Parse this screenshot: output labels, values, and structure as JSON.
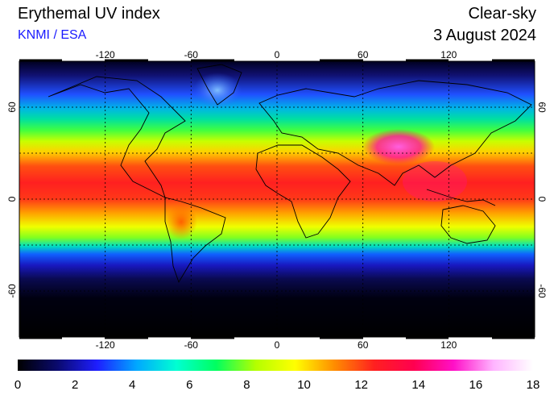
{
  "header": {
    "title": "Erythemal UV index",
    "subtitle": "KNMI / ESA",
    "sky_condition": "Clear-sky",
    "date": "3 August 2024"
  },
  "map": {
    "lon_ticks": [
      -120,
      -60,
      0,
      60,
      120
    ],
    "lat_ticks": [
      60,
      0,
      -60
    ],
    "lon_range": [
      -180,
      180
    ],
    "lat_range": [
      -90,
      90
    ],
    "grid": "dashed"
  },
  "colorbar": {
    "labels": [
      "0",
      "2",
      "4",
      "6",
      "8",
      "10",
      "12",
      "14",
      "16",
      "18"
    ],
    "min": 0,
    "max": 18,
    "colors": [
      "#000000",
      "#0a0a6e",
      "#1e1eff",
      "#00a8ff",
      "#00ffd2",
      "#00ff60",
      "#b4ff00",
      "#ffff00",
      "#ff8c00",
      "#ff2020",
      "#ff0050",
      "#ff10c8",
      "#ffb4ff",
      "#ffffff"
    ]
  }
}
